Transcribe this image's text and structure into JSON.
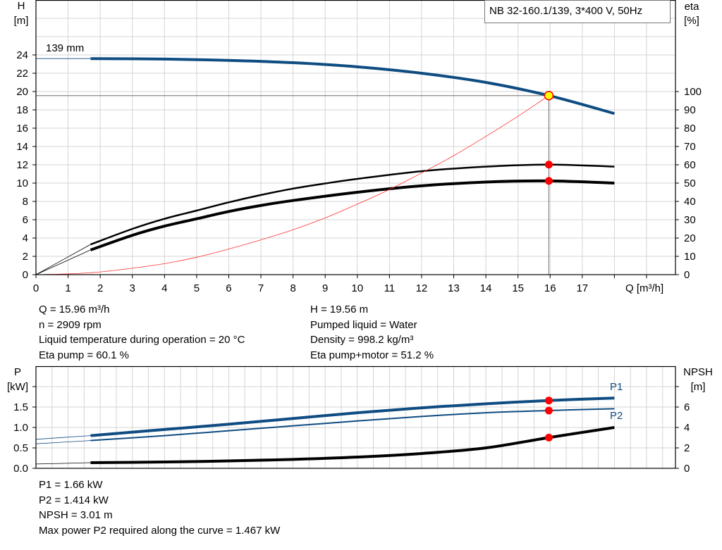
{
  "title": "NB 32-160.1/139, 3*400 V, 50Hz",
  "impeller_label": "139 mm",
  "colors": {
    "head": "#0f4c81",
    "power": "#0f4c81",
    "efficiency": "#000000",
    "npsh": "#000000",
    "system": "#ff3030",
    "duty_point": "#ff0000",
    "duty_point_highlight": "#ffff00",
    "grid": "#d4d4d4"
  },
  "chart_data": [
    {
      "type": "line",
      "title": "NB 32-160.1/139, 3*400 V, 50Hz",
      "xlabel": "Q [m³/h]",
      "ylabel": "H [m]",
      "ylabel_lines": [
        "H",
        "[m]"
      ],
      "y2label_lines": [
        "eta",
        "[%]"
      ],
      "xlim": [
        0,
        19.9
      ],
      "ylim": [
        0,
        30
      ],
      "y2lim": [
        0,
        150
      ],
      "grid": true,
      "x_ticks": [
        "0",
        "1",
        "2",
        "3",
        "4",
        "5",
        "6",
        "7",
        "8",
        "9",
        "10",
        "11",
        "12",
        "13",
        "14",
        "15",
        "16",
        "17"
      ],
      "y_ticks": [
        "0",
        "2",
        "4",
        "6",
        "8",
        "10",
        "12",
        "14",
        "16",
        "18",
        "20",
        "22",
        "24"
      ],
      "y2_ticks": [
        "0",
        "10",
        "20",
        "30",
        "40",
        "50",
        "60",
        "70",
        "80",
        "90",
        "100"
      ],
      "series": [
        {
          "key": "head",
          "axis": "H",
          "x": [
            1.7,
            4,
            6,
            8,
            10,
            12,
            14,
            15.96,
            18
          ],
          "y": [
            23.6,
            23.55,
            23.4,
            23.15,
            22.7,
            22.0,
            21.0,
            19.56,
            17.6
          ],
          "extension": {
            "x": [
              0,
              1.7
            ],
            "y": [
              23.6,
              23.6
            ]
          }
        },
        {
          "key": "eta_pump",
          "axis": "eta",
          "x": [
            1.7,
            3,
            4,
            5,
            6,
            7,
            8,
            9,
            10,
            12,
            14,
            15.96,
            18
          ],
          "y": [
            16.5,
            25,
            30.5,
            35,
            39.5,
            43.5,
            47,
            49.8,
            52.3,
            56.5,
            59,
            60.1,
            59
          ],
          "extension": {
            "x": [
              0,
              1.7
            ],
            "y": [
              0,
              16.5
            ]
          }
        },
        {
          "key": "eta_pump_motor",
          "axis": "eta",
          "x": [
            1.7,
            3,
            4,
            5,
            6,
            7,
            8,
            10,
            12,
            14,
            15.96,
            18
          ],
          "y": [
            13.5,
            21.5,
            26.5,
            30.5,
            34.5,
            37.8,
            40.5,
            45,
            48.5,
            50.6,
            51.2,
            50
          ],
          "extension": {
            "x": [
              0,
              1.7
            ],
            "y": [
              0,
              13.5
            ]
          }
        },
        {
          "key": "system",
          "axis": "H",
          "x": [
            0,
            1,
            2,
            3,
            4,
            5,
            6,
            7,
            8,
            9,
            10,
            11,
            12,
            13,
            14,
            15,
            15.96
          ],
          "y": [
            0,
            0.08,
            0.3,
            0.7,
            1.2,
            1.9,
            2.8,
            3.8,
            4.9,
            6.2,
            7.7,
            9.3,
            11.1,
            13.0,
            15.1,
            17.3,
            19.56
          ]
        }
      ],
      "duty_point": {
        "Q": 15.96,
        "H": 19.56,
        "eta_pump": 60.1,
        "eta_pump_motor": 51.2
      }
    },
    {
      "type": "line",
      "ylabel_lines": [
        "P",
        "[kW]"
      ],
      "y2label_lines": [
        "NPSH",
        "[m]"
      ],
      "xlim": [
        0,
        19.9
      ],
      "ylim": [
        0,
        2.5
      ],
      "y2lim": [
        0,
        10
      ],
      "grid": true,
      "y_ticks": [
        "0.0",
        "0.5",
        "1.0",
        "1.5"
      ],
      "y2_ticks": [
        "0",
        "2",
        "4",
        "6"
      ],
      "series": [
        {
          "key": "P1",
          "name": "P1",
          "axis": "P",
          "x": [
            1.7,
            4,
            6,
            8,
            10,
            12,
            14,
            15.96,
            18
          ],
          "y": [
            0.8,
            0.95,
            1.08,
            1.22,
            1.36,
            1.48,
            1.58,
            1.66,
            1.72
          ],
          "extension": {
            "x": [
              0,
              1.7
            ],
            "y": [
              0.71,
              0.8
            ]
          }
        },
        {
          "key": "P2",
          "name": "P2",
          "axis": "P",
          "x": [
            1.7,
            4,
            6,
            8,
            10,
            12,
            14,
            15.96,
            18
          ],
          "y": [
            0.68,
            0.8,
            0.92,
            1.04,
            1.16,
            1.27,
            1.36,
            1.414,
            1.46
          ],
          "extension": {
            "x": [
              0,
              1.7
            ],
            "y": [
              0.6,
              0.68
            ]
          }
        },
        {
          "key": "NPSH",
          "axis": "NPSH",
          "x": [
            1.7,
            4,
            6,
            8,
            10,
            12,
            14,
            15.96,
            18
          ],
          "y": [
            0.55,
            0.62,
            0.72,
            0.87,
            1.1,
            1.45,
            2.0,
            3.01,
            4.0
          ],
          "extension": {
            "x": [
              0,
              1.7
            ],
            "y": [
              0.42,
              0.55
            ]
          }
        }
      ],
      "duty_point": {
        "Q": 15.96,
        "P1": 1.66,
        "P2": 1.414,
        "NPSH": 3.01
      }
    }
  ],
  "info_top": {
    "left": [
      "Q = 15.96 m³/h",
      "n = 2909 rpm",
      "Liquid temperature during operation = 20 °C",
      "Eta pump = 60.1 %"
    ],
    "right": [
      "H = 19.56 m",
      "Pumped liquid = Water",
      "Density = 998.2 kg/m³",
      "Eta pump+motor = 51.2 %"
    ]
  },
  "info_bottom": [
    "P1 = 1.66 kW",
    "P2 = 1.414 kW",
    "NPSH = 3.01 m",
    "Max power P2 required along the curve = 1.467 kW"
  ]
}
